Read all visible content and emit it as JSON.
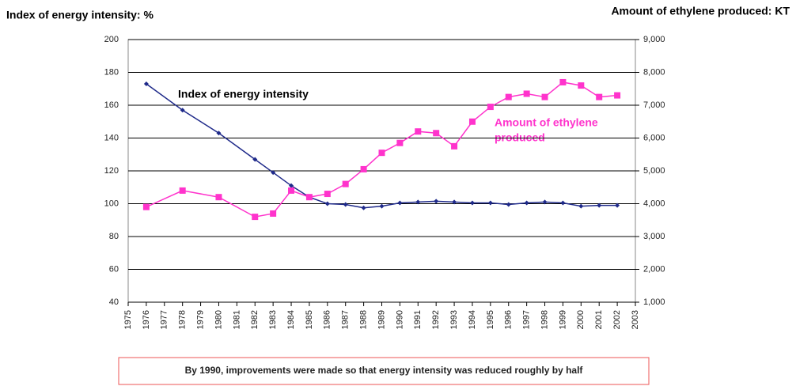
{
  "chart_data": {
    "type": "line",
    "y_title": "Index of energy intensity: %",
    "y2_title": "Amount of ethylene produced: KT",
    "x": [
      1976,
      1978,
      1980,
      1982,
      1983,
      1984,
      1985,
      1986,
      1987,
      1988,
      1989,
      1990,
      1991,
      1992,
      1993,
      1994,
      1995,
      1996,
      1997,
      1998,
      1999,
      2000,
      2001,
      2002
    ],
    "series": [
      {
        "name": "Index of energy intensity",
        "color": "#1f2a8a",
        "values": [
          173,
          157,
          143,
          127,
          119,
          111,
          104,
          100,
          99.5,
          97.5,
          98.5,
          100.5,
          101,
          101.5,
          101,
          100.5,
          100.5,
          99.5,
          100.5,
          101,
          100.5,
          98.5,
          99,
          99
        ]
      },
      {
        "name": "Amount of ethylene produced",
        "color": "#ff33cc",
        "axis": "y2",
        "values": [
          3900,
          4400,
          4200,
          3600,
          3700,
          4400,
          4200,
          4300,
          4600,
          5050,
          5550,
          5850,
          6200,
          6150,
          5750,
          6500,
          6950,
          7250,
          7350,
          7250,
          7700,
          7600,
          7250,
          7300
        ]
      }
    ],
    "xlim": [
      1975,
      2003
    ],
    "xticks": [
      1975,
      1976,
      1977,
      1978,
      1979,
      1980,
      1981,
      1982,
      1983,
      1984,
      1985,
      1986,
      1987,
      1988,
      1989,
      1990,
      1991,
      1992,
      1993,
      1994,
      1995,
      1996,
      1997,
      1998,
      1999,
      2000,
      2001,
      2002,
      2003
    ],
    "ylim": [
      40,
      200
    ],
    "yticks": [
      40,
      60,
      80,
      100,
      120,
      140,
      160,
      180,
      200
    ],
    "y2lim": [
      1000,
      9000
    ],
    "y2ticks": [
      {
        "value": 1000,
        "label": "1,000"
      },
      {
        "value": 2000,
        "label": "2,000"
      },
      {
        "value": 3000,
        "label": "3,000"
      },
      {
        "value": 4000,
        "label": "4,000"
      },
      {
        "value": 5000,
        "label": "5,000"
      },
      {
        "value": 6000,
        "label": "6,000"
      },
      {
        "value": 7000,
        "label": "7,000"
      },
      {
        "value": 8000,
        "label": "8,000"
      },
      {
        "value": 9000,
        "label": "9,000"
      }
    ],
    "grid": true,
    "annotation_energy": "Index of energy intensity",
    "annotation_ethylene": [
      "Amount of ethylene",
      "produced"
    ],
    "note": "By 1990, improvements were made so that energy intensity was reduced roughly by half"
  }
}
